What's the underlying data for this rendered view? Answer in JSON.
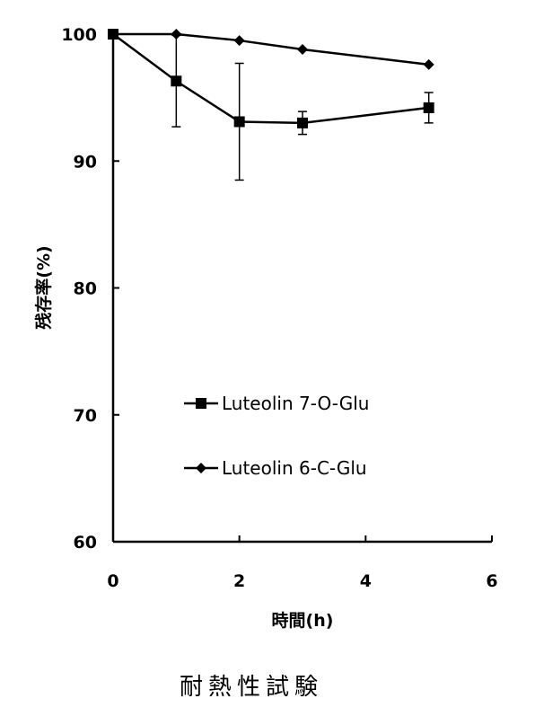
{
  "caption": "耐熱性試験",
  "chart_data": {
    "type": "line",
    "xlabel": "時間(h)",
    "ylabel": "残存率(%)",
    "xlim": [
      0,
      6
    ],
    "ylim": [
      60,
      100
    ],
    "xticks": [
      0,
      2,
      4,
      6
    ],
    "yticks": [
      60,
      70,
      80,
      90,
      100
    ],
    "grid": false,
    "legend_position": "lower-center",
    "series": [
      {
        "name": "Luteolin 7-O-Glu",
        "marker": "square",
        "x": [
          0,
          1,
          2,
          3,
          5
        ],
        "y": [
          100,
          96.3,
          93.1,
          93.0,
          94.2
        ],
        "err": [
          0,
          3.6,
          4.6,
          0.9,
          1.2
        ]
      },
      {
        "name": "Luteolin 6-C-Glu",
        "marker": "diamond",
        "x": [
          0,
          1,
          2,
          3,
          5
        ],
        "y": [
          100,
          100,
          99.5,
          98.8,
          97.6
        ],
        "err": [
          0,
          0,
          0,
          0,
          0
        ]
      }
    ]
  }
}
